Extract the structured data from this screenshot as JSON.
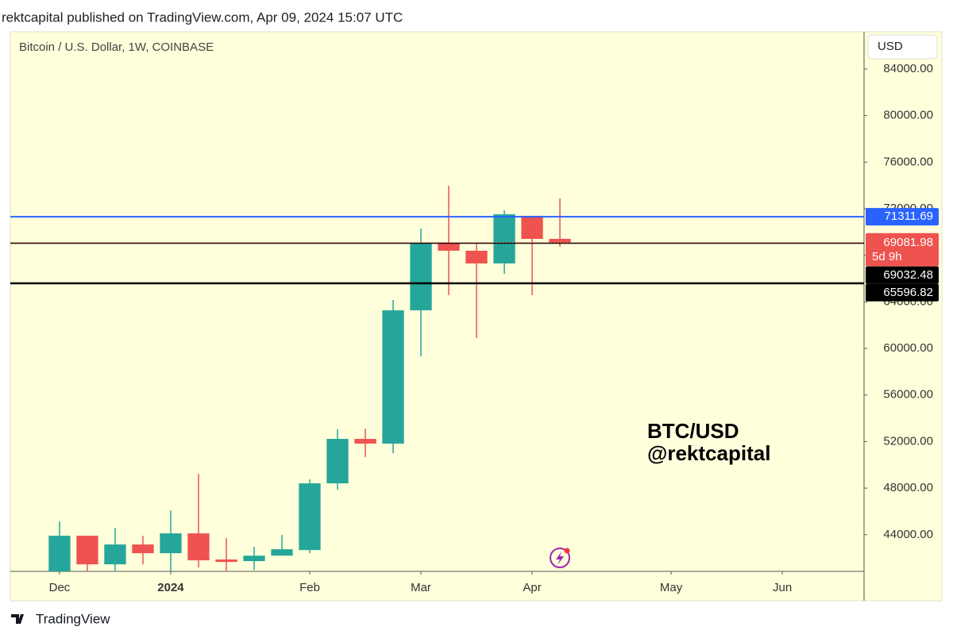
{
  "header": "rektcapital published on TradingView.com, Apr 09, 2024 15:07 UTC",
  "footer": "TradingView",
  "chart_data": {
    "type": "candlestick",
    "title": "Bitcoin / U.S. Dollar, 1W, COINBASE",
    "currency": "USD",
    "annotation": [
      "BTC/USD",
      "@rektcapital"
    ],
    "up_color": "#26a69a",
    "down_color": "#ef5350",
    "grid": false,
    "x": [
      0,
      1,
      2,
      3,
      4,
      5,
      6,
      7,
      8,
      9,
      10,
      11,
      12,
      13,
      14,
      15,
      16,
      17,
      18
    ],
    "open": [
      40800,
      43910,
      41455,
      43160,
      42410,
      44115,
      41870,
      41730,
      42200,
      42680,
      48410,
      52230,
      51820,
      63270,
      69070,
      68390,
      67300,
      71390,
      69410
    ],
    "high": [
      45137,
      43910,
      44590,
      43910,
      46090,
      49230,
      43700,
      42950,
      43980,
      48750,
      53050,
      53110,
      64160,
      70300,
      73980,
      69000,
      71860,
      71390,
      72890
    ],
    "low": [
      40600,
      40900,
      40850,
      41455,
      40700,
      41180,
      40850,
      40980,
      42200,
      42410,
      47870,
      50660,
      51000,
      59320,
      64570,
      60890,
      66410,
      64570,
      68730
    ],
    "close": [
      43910,
      41455,
      43160,
      42410,
      44115,
      41800,
      41660,
      42200,
      42750,
      48410,
      52230,
      51820,
      63270,
      69070,
      68390,
      67300,
      71520,
      69410,
      69081.98
    ],
    "countdown": "5d 9h",
    "xlim": [
      -1.77,
      28.94
    ],
    "xticks": [
      {
        "value": 0,
        "label": "Dec"
      },
      {
        "value": 4,
        "label": "2024"
      },
      {
        "value": 9,
        "label": "Feb"
      },
      {
        "value": 13,
        "label": "Mar"
      },
      {
        "value": 17,
        "label": "Apr"
      },
      {
        "value": 22,
        "label": "May"
      },
      {
        "value": 26,
        "label": "Jun"
      }
    ],
    "ylim": [
      40850,
      87200
    ],
    "yticks": [
      {
        "value": 44000,
        "label": "44000.00"
      },
      {
        "value": 48000,
        "label": "48000.00"
      },
      {
        "value": 52000,
        "label": "52000.00"
      },
      {
        "value": 56000,
        "label": "56000.00"
      },
      {
        "value": 60000,
        "label": "60000.00"
      },
      {
        "value": 64000,
        "label": "64000.00"
      },
      {
        "value": 68000,
        "label": "68000.00"
      },
      {
        "value": 72000,
        "label": "72000.00"
      },
      {
        "value": 76000,
        "label": "76000.00"
      },
      {
        "value": 80000,
        "label": "80000.00"
      },
      {
        "value": 84000,
        "label": "84000.00"
      }
    ],
    "hlines": [
      {
        "value": 71311.69,
        "color": "#2962ff"
      },
      {
        "value": 69032.48,
        "color": "#000000"
      },
      {
        "value": 65596.82,
        "color": "#000000"
      }
    ]
  }
}
